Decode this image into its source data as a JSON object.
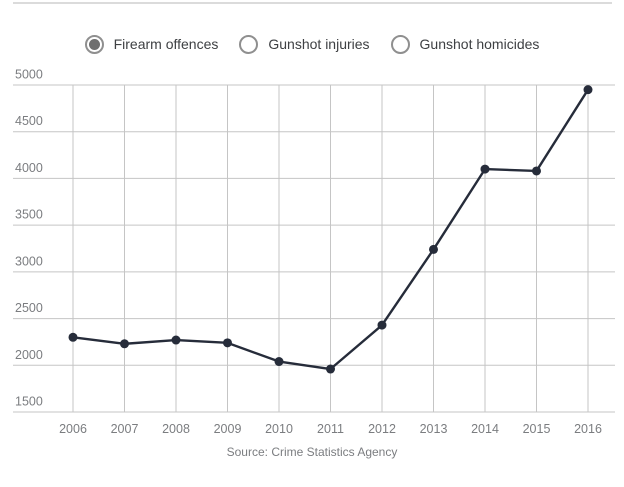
{
  "legend": {
    "options": [
      {
        "label": "Firearm offences",
        "selected": true
      },
      {
        "label": "Gunshot injuries",
        "selected": false
      },
      {
        "label": "Gunshot homicides",
        "selected": false
      }
    ]
  },
  "chart_data": {
    "type": "line",
    "categories": [
      "2006",
      "2007",
      "2008",
      "2009",
      "2010",
      "2011",
      "2012",
      "2013",
      "2014",
      "2015",
      "2016"
    ],
    "series": [
      {
        "name": "Firearm offences",
        "values": [
          2300,
          2230,
          2270,
          2240,
          2040,
          1960,
          2430,
          3240,
          4100,
          4080,
          4950
        ]
      }
    ],
    "title": "",
    "xlabel": "",
    "ylabel": "",
    "ylim": [
      1500,
      5000
    ],
    "y_ticks": [
      1500,
      2000,
      2500,
      3000,
      3500,
      4000,
      4500,
      5000
    ],
    "grid": true,
    "legend_position": "top",
    "line_color": "#262c3a",
    "marker_color": "#262c3a",
    "gridline_color": "#c5c5c5",
    "source": "Source: Crime Statistics Agency"
  }
}
